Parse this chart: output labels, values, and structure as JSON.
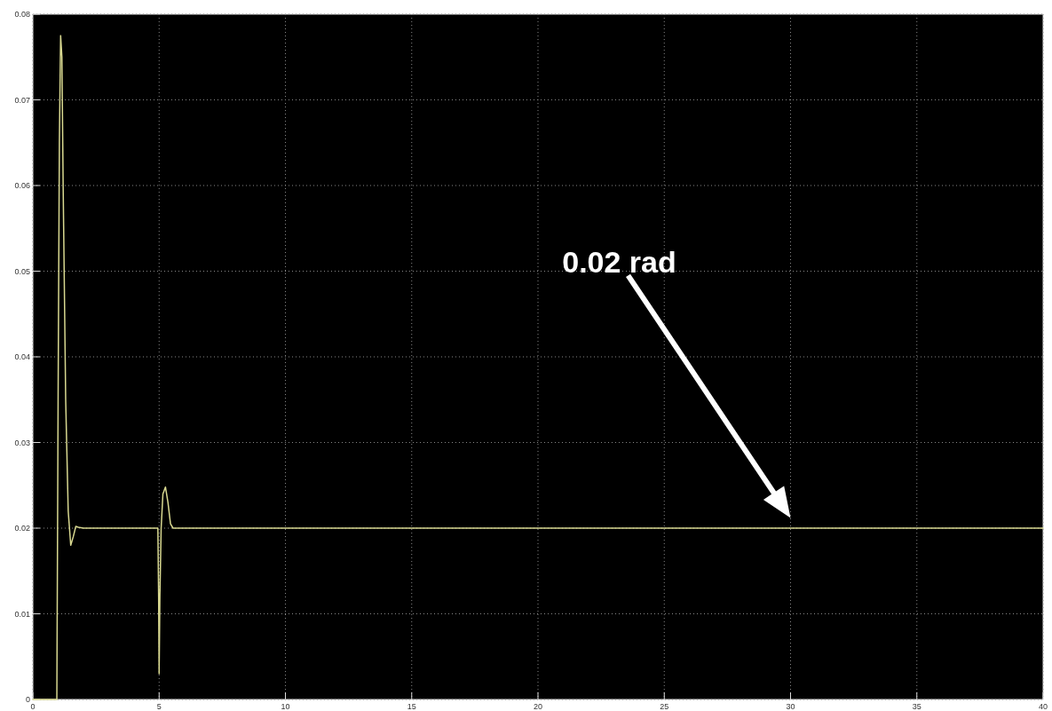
{
  "chart_data": {
    "type": "line",
    "xlim": [
      0,
      40
    ],
    "ylim": [
      0,
      0.08
    ],
    "xticks": [
      0,
      5,
      10,
      15,
      20,
      25,
      30,
      35,
      40
    ],
    "yticks": [
      0,
      0.01,
      0.02,
      0.03,
      0.04,
      0.05,
      0.06,
      0.07,
      0.08
    ],
    "grid": true,
    "line_style": "solid",
    "annotations": [
      "0.02 rad"
    ],
    "series": [
      {
        "color": "#d8d890",
        "x": [
          0,
          0.95,
          1.0,
          1.05,
          1.1,
          1.15,
          1.2,
          1.3,
          1.4,
          1.5,
          1.6,
          1.7,
          1.8,
          2.0,
          3,
          4,
          4.95,
          4.98,
          5.0,
          5.03,
          5.08,
          5.15,
          5.25,
          5.35,
          5.45,
          5.55,
          6,
          10,
          20,
          30,
          40
        ],
        "values": [
          0,
          0,
          0.035,
          0.065,
          0.0775,
          0.075,
          0.06,
          0.035,
          0.022,
          0.018,
          0.019,
          0.0202,
          0.0201,
          0.02,
          0.02,
          0.02,
          0.02,
          0.012,
          0.003,
          0.012,
          0.02,
          0.024,
          0.0248,
          0.023,
          0.0205,
          0.02,
          0.02,
          0.02,
          0.02,
          0.02,
          0.02
        ]
      }
    ]
  }
}
